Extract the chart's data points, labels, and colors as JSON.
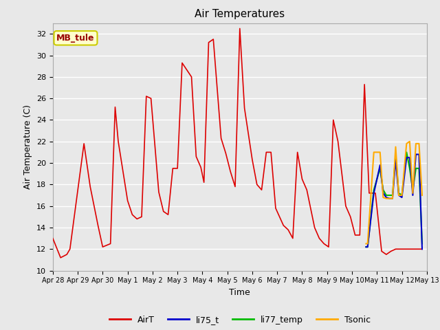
{
  "title": "Air Temperatures",
  "xlabel": "Time",
  "ylabel": "Air Temperature (C)",
  "ylim": [
    10,
    33
  ],
  "yticks": [
    10,
    12,
    14,
    16,
    18,
    20,
    22,
    24,
    26,
    28,
    30,
    32
  ],
  "plot_bg_color": "#e8e8e8",
  "grid_color": "white",
  "annotation_text": "MB_tule",
  "annotation_color": "#990000",
  "annotation_bg": "#ffffcc",
  "annotation_border": "#cccc00",
  "legend_entries": [
    "AirT",
    "li75_t",
    "li77_temp",
    "Tsonic"
  ],
  "legend_colors": [
    "#dd0000",
    "#0000cc",
    "#00bb00",
    "#ffaa00"
  ],
  "x_tick_labels": [
    "Apr 28",
    "Apr 29",
    "Apr 30",
    "May 1",
    "May 2",
    "May 3",
    "May 4",
    "May 5",
    "May 6",
    "May 7",
    "May 8",
    "May 9",
    "May 10",
    "May 11",
    "May 12",
    "May 13"
  ],
  "AirT_x": [
    0.0,
    0.25,
    0.45,
    0.55,
    1.0,
    1.2,
    1.45,
    1.6,
    1.85,
    2.0,
    2.1,
    2.4,
    2.55,
    2.7,
    2.85,
    3.0,
    3.15,
    3.4,
    3.55,
    3.7,
    3.85,
    4.0,
    4.15,
    4.45,
    4.6,
    4.75,
    4.85,
    5.0,
    5.15,
    5.4,
    5.55,
    5.7,
    5.85,
    6.0,
    6.15,
    6.4,
    6.55,
    6.7,
    6.85,
    7.0,
    7.15,
    7.4,
    7.55,
    7.7,
    7.85,
    8.0,
    8.15,
    8.4,
    8.55,
    8.7,
    8.85,
    9.0,
    9.15,
    9.4,
    9.55,
    9.7,
    9.85,
    10.0,
    10.15,
    10.35,
    10.55,
    10.7,
    10.85,
    11.0,
    11.4,
    11.55,
    11.7,
    11.85
  ],
  "AirT_y": [
    13.0,
    11.2,
    11.5,
    12.0,
    21.8,
    17.8,
    14.2,
    12.2,
    12.5,
    25.2,
    22.0,
    16.5,
    15.2,
    14.8,
    15.0,
    26.2,
    26.0,
    17.3,
    15.5,
    15.2,
    19.5,
    19.5,
    29.3,
    28.0,
    20.6,
    19.6,
    18.2,
    31.2,
    31.5,
    22.3,
    20.9,
    19.2,
    17.8,
    32.5,
    25.1,
    20.3,
    18.0,
    17.5,
    21.0,
    21.0,
    15.8,
    14.2,
    13.8,
    13.0,
    21.0,
    18.5,
    17.5,
    14.0,
    13.0,
    12.5,
    12.2,
    24.0,
    22.0,
    16.0,
    15.0,
    13.3,
    13.3,
    27.3,
    17.2,
    17.2,
    11.8,
    11.5,
    11.8,
    12.0,
    12.0,
    12.0,
    12.0,
    12.0
  ],
  "li75_x": [
    10.05,
    10.1,
    10.3,
    10.5,
    10.6,
    10.7,
    10.8,
    10.9,
    11.0,
    11.1,
    11.2,
    11.35,
    11.45,
    11.55,
    11.65,
    11.75,
    11.85
  ],
  "li75_y": [
    12.2,
    12.2,
    17.2,
    19.8,
    17.2,
    16.8,
    16.7,
    16.7,
    20.3,
    17.0,
    16.8,
    20.5,
    20.5,
    17.0,
    20.8,
    20.8,
    12.0
  ],
  "li77_x": [
    10.05,
    10.1,
    10.3,
    10.5,
    10.6,
    10.7,
    10.8,
    10.9,
    11.0,
    11.1,
    11.2,
    11.35,
    11.45,
    11.55,
    11.65,
    11.75,
    11.85
  ],
  "li77_y": [
    12.2,
    12.2,
    17.5,
    19.5,
    17.5,
    17.0,
    17.0,
    17.0,
    20.8,
    17.2,
    17.0,
    21.0,
    19.5,
    17.5,
    19.5,
    19.5,
    12.5
  ],
  "tsonic_x": [
    10.05,
    10.1,
    10.3,
    10.5,
    10.6,
    10.7,
    10.8,
    10.9,
    11.0,
    11.1,
    11.2,
    11.35,
    11.45,
    11.55,
    11.65,
    11.75,
    11.85
  ],
  "tsonic_y": [
    12.5,
    12.5,
    21.0,
    21.0,
    16.8,
    16.7,
    16.7,
    16.7,
    21.5,
    17.0,
    17.0,
    21.8,
    22.0,
    17.2,
    21.8,
    21.8,
    17.0
  ]
}
